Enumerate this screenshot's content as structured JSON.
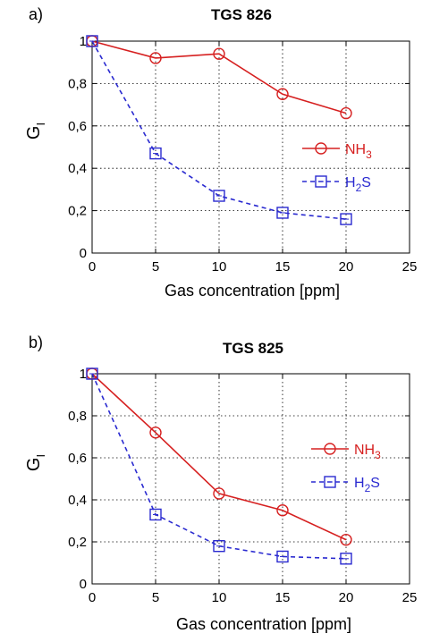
{
  "chart_data": [
    {
      "type": "line",
      "panel_label": "a)",
      "title": "TGS 826",
      "xlabel": "Gas concentration  [ppm]",
      "ylabel": "G",
      "ylabel_sub": "I",
      "xlim": [
        0,
        25
      ],
      "ylim": [
        0,
        1
      ],
      "x_ticks": [
        "0",
        "5",
        "10",
        "15",
        "20",
        "25"
      ],
      "y_ticks": [
        "0",
        "0,2",
        "0,4",
        "0,6",
        "0,8",
        "1"
      ],
      "grid": "dotted",
      "legend_position": "right",
      "series": [
        {
          "name": "NH",
          "name_sub": "3",
          "color": "#d62020",
          "style": "solid",
          "marker": "circle",
          "x": [
            0,
            5,
            10,
            15,
            20
          ],
          "y": [
            1.0,
            0.92,
            0.94,
            0.75,
            0.66
          ]
        },
        {
          "name": "H",
          "name_sub": "2",
          "name_tail": "S",
          "color": "#2a2ad0",
          "style": "dashed",
          "marker": "square",
          "x": [
            0,
            5,
            10,
            15,
            20
          ],
          "y": [
            1.0,
            0.47,
            0.27,
            0.19,
            0.16
          ]
        }
      ]
    },
    {
      "type": "line",
      "panel_label": "b)",
      "title": "TGS 825",
      "xlabel": "Gas concentration  [ppm]",
      "ylabel": "G",
      "ylabel_sub": "I",
      "xlim": [
        0,
        25
      ],
      "ylim": [
        0,
        1
      ],
      "x_ticks": [
        "0",
        "5",
        "10",
        "15",
        "20",
        "25"
      ],
      "y_ticks": [
        "0",
        "0,2",
        "0,4",
        "0,6",
        "0,8",
        "1"
      ],
      "grid": "dotted",
      "legend_position": "right",
      "series": [
        {
          "name": "NH",
          "name_sub": "3",
          "color": "#d62020",
          "style": "solid",
          "marker": "circle",
          "x": [
            0,
            5,
            10,
            15,
            20
          ],
          "y": [
            1.0,
            0.72,
            0.43,
            0.35,
            0.21
          ]
        },
        {
          "name": "H",
          "name_sub": "2",
          "name_tail": "S",
          "color": "#2a2ad0",
          "style": "dashed",
          "marker": "square",
          "x": [
            0,
            5,
            10,
            15,
            20
          ],
          "y": [
            1.0,
            0.33,
            0.18,
            0.13,
            0.12
          ]
        }
      ]
    }
  ]
}
